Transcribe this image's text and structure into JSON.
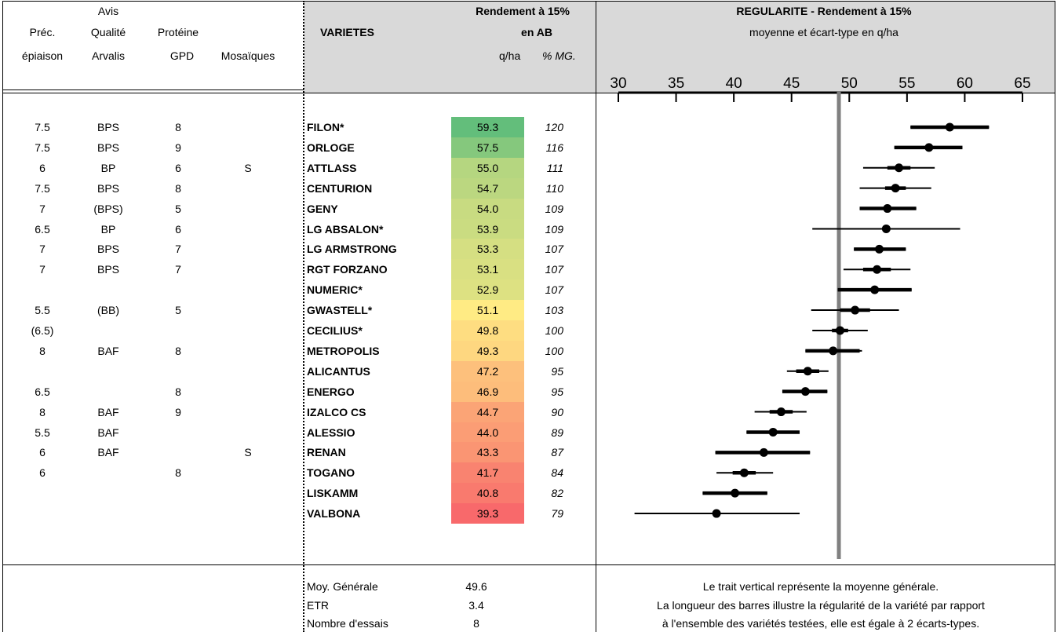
{
  "left_headers": {
    "prec_line1": "Préc.",
    "prec_line2": "épiaison",
    "avis_line1": "Avis",
    "avis_line2": "Qualité",
    "avis_line3": "Arvalis",
    "prot_line1": "Protéine",
    "prot_line2": "GPD",
    "mosaiques": "Mosaïques"
  },
  "center_headers": {
    "varietes": "VARIETES",
    "rendement_line1": "Rendement à 15%",
    "rendement_line2": "en AB",
    "unit_qha": "q/ha",
    "unit_pct": "% MG."
  },
  "chart_headers": {
    "title": "REGULARITE - Rendement à 15%",
    "subtitle": "moyenne et écart-type en q/ha"
  },
  "colors": {
    "green": "#63be7b",
    "yellow": "#ffeb84",
    "red": "#f8696b",
    "mean_line": "#808080"
  },
  "rows": [
    {
      "prec": "7.5",
      "avis": "BPS",
      "prot": "8",
      "mos": "",
      "name": "FILON*",
      "yield": "59.3",
      "pct": "120"
    },
    {
      "prec": "7.5",
      "avis": "BPS",
      "prot": "9",
      "mos": "",
      "name": "ORLOGE",
      "yield": "57.5",
      "pct": "116"
    },
    {
      "prec": "6",
      "avis": "BP",
      "prot": "6",
      "mos": "S",
      "name": "ATTLASS",
      "yield": "55.0",
      "pct": "111"
    },
    {
      "prec": "7.5",
      "avis": "BPS",
      "prot": "8",
      "mos": "",
      "name": "CENTURION",
      "yield": "54.7",
      "pct": "110"
    },
    {
      "prec": "7",
      "avis": "(BPS)",
      "prot": "5",
      "mos": "",
      "name": "GENY",
      "yield": "54.0",
      "pct": "109"
    },
    {
      "prec": "6.5",
      "avis": "BP",
      "prot": "6",
      "mos": "",
      "name": "LG ABSALON*",
      "yield": "53.9",
      "pct": "109"
    },
    {
      "prec": "7",
      "avis": "BPS",
      "prot": "7",
      "mos": "",
      "name": "LG ARMSTRONG",
      "yield": "53.3",
      "pct": "107"
    },
    {
      "prec": "7",
      "avis": "BPS",
      "prot": "7",
      "mos": "",
      "name": "RGT FORZANO",
      "yield": "53.1",
      "pct": "107"
    },
    {
      "prec": "",
      "avis": "",
      "prot": "",
      "mos": "",
      "name": "NUMERIC*",
      "yield": "52.9",
      "pct": "107"
    },
    {
      "prec": "5.5",
      "avis": "(BB)",
      "prot": "5",
      "mos": "",
      "name": "GWASTELL*",
      "yield": "51.1",
      "pct": "103"
    },
    {
      "prec": "(6.5)",
      "avis": "",
      "prot": "",
      "mos": "",
      "name": "CECILIUS*",
      "yield": "49.8",
      "pct": "100"
    },
    {
      "prec": "8",
      "avis": "BAF",
      "prot": "8",
      "mos": "",
      "name": "METROPOLIS",
      "yield": "49.3",
      "pct": "100"
    },
    {
      "prec": "",
      "avis": "",
      "prot": "",
      "mos": "",
      "name": "ALICANTUS",
      "yield": "47.2",
      "pct": "95"
    },
    {
      "prec": "6.5",
      "avis": "",
      "prot": "8",
      "mos": "",
      "name": "ENERGO",
      "yield": "46.9",
      "pct": "95"
    },
    {
      "prec": "8",
      "avis": "BAF",
      "prot": "9",
      "mos": "",
      "name": "IZALCO CS",
      "yield": "44.7",
      "pct": "90"
    },
    {
      "prec": "5.5",
      "avis": "BAF",
      "prot": "",
      "mos": "",
      "name": "ALESSIO",
      "yield": "44.0",
      "pct": "89"
    },
    {
      "prec": "6",
      "avis": "BAF",
      "prot": "",
      "mos": "S",
      "name": "RENAN",
      "yield": "43.3",
      "pct": "87"
    },
    {
      "prec": "6",
      "avis": "",
      "prot": "8",
      "mos": "",
      "name": "TOGANO",
      "yield": "41.7",
      "pct": "84"
    },
    {
      "prec": "",
      "avis": "",
      "prot": "",
      "mos": "",
      "name": "LISKAMM",
      "yield": "40.8",
      "pct": "82"
    },
    {
      "prec": "",
      "avis": "",
      "prot": "",
      "mos": "",
      "name": "VALBONA",
      "yield": "39.3",
      "pct": "79"
    }
  ],
  "chart_data": {
    "type": "scatter",
    "title": "REGULARITE - Rendement à 15%",
    "subtitle": "moyenne et écart-type en q/ha",
    "xlim": [
      30,
      65
    ],
    "x_ticks": [
      30,
      35,
      40,
      45,
      50,
      55,
      60,
      65
    ],
    "x_tick_labels": [
      "30",
      "35",
      "40",
      "45",
      "50",
      "55",
      "60",
      "65"
    ],
    "reference_line": 49.1,
    "points": [
      {
        "name": "FILON*",
        "mean": 58.7,
        "thick": [
          55.3,
          62.1
        ],
        "thin": [
          55.3,
          62.1
        ]
      },
      {
        "name": "ORLOGE",
        "mean": 56.9,
        "thick": [
          53.9,
          59.8
        ],
        "thin": [
          53.9,
          59.8
        ]
      },
      {
        "name": "ATTLASS",
        "mean": 54.3,
        "thick": [
          53.3,
          55.3
        ],
        "thin": [
          51.2,
          57.4
        ]
      },
      {
        "name": "CENTURION",
        "mean": 54.0,
        "thick": [
          53.1,
          54.9
        ],
        "thin": [
          50.9,
          57.1
        ]
      },
      {
        "name": "GENY",
        "mean": 53.3,
        "thick": [
          50.9,
          55.8
        ],
        "thin": [
          50.9,
          55.8
        ]
      },
      {
        "name": "LG ABSALON*",
        "mean": 53.2,
        "thick": [
          53.0,
          53.4
        ],
        "thin": [
          46.8,
          59.6
        ]
      },
      {
        "name": "LG ARMSTRONG",
        "mean": 52.6,
        "thick": [
          50.4,
          54.9
        ],
        "thin": [
          50.4,
          54.9
        ]
      },
      {
        "name": "RGT FORZANO",
        "mean": 52.4,
        "thick": [
          51.2,
          53.6
        ],
        "thin": [
          49.5,
          55.3
        ]
      },
      {
        "name": "NUMERIC*",
        "mean": 52.2,
        "thick": [
          49.0,
          55.4
        ],
        "thin": [
          49.0,
          55.4
        ]
      },
      {
        "name": "GWASTELL*",
        "mean": 50.5,
        "thick": [
          49.2,
          51.8
        ],
        "thin": [
          46.7,
          54.3
        ]
      },
      {
        "name": "CECILIUS*",
        "mean": 49.2,
        "thick": [
          48.5,
          49.9
        ],
        "thin": [
          46.8,
          51.6
        ]
      },
      {
        "name": "METROPOLIS",
        "mean": 48.6,
        "thick": [
          46.2,
          50.9
        ],
        "thin": [
          46.2,
          51.1
        ]
      },
      {
        "name": "ALICANTUS",
        "mean": 46.4,
        "thick": [
          45.4,
          47.4
        ],
        "thin": [
          44.6,
          48.2
        ]
      },
      {
        "name": "ENERGO",
        "mean": 46.2,
        "thick": [
          44.2,
          48.1
        ],
        "thin": [
          44.2,
          48.1
        ]
      },
      {
        "name": "IZALCO CS",
        "mean": 44.1,
        "thick": [
          43.1,
          45.1
        ],
        "thin": [
          41.8,
          46.3
        ]
      },
      {
        "name": "ALESSIO",
        "mean": 43.4,
        "thick": [
          41.1,
          45.7
        ],
        "thin": [
          41.1,
          45.7
        ]
      },
      {
        "name": "RENAN",
        "mean": 42.6,
        "thick": [
          38.4,
          46.6
        ],
        "thin": [
          38.4,
          46.6
        ]
      },
      {
        "name": "TOGANO",
        "mean": 40.9,
        "thick": [
          39.9,
          41.9
        ],
        "thin": [
          38.5,
          43.4
        ]
      },
      {
        "name": "LISKAMM",
        "mean": 40.1,
        "thick": [
          37.3,
          42.9
        ],
        "thin": [
          37.3,
          42.9
        ]
      },
      {
        "name": "VALBONA",
        "mean": 38.5,
        "thick": [
          38.4,
          38.6
        ],
        "thin": [
          31.4,
          45.7
        ]
      }
    ]
  },
  "footer": {
    "moy_label": "Moy. Générale",
    "moy_value": "49.6",
    "etr_label": "ETR",
    "etr_value": "3.4",
    "essais_label": "Nombre d'essais",
    "essais_value": "8",
    "note_line1": "Le trait vertical représente la moyenne générale.",
    "note_line2": "La longueur des barres illustre la régularité de la variété par rapport",
    "note_line3": "à l'ensemble des variétés testées, elle est égale à 2 écarts-types."
  }
}
